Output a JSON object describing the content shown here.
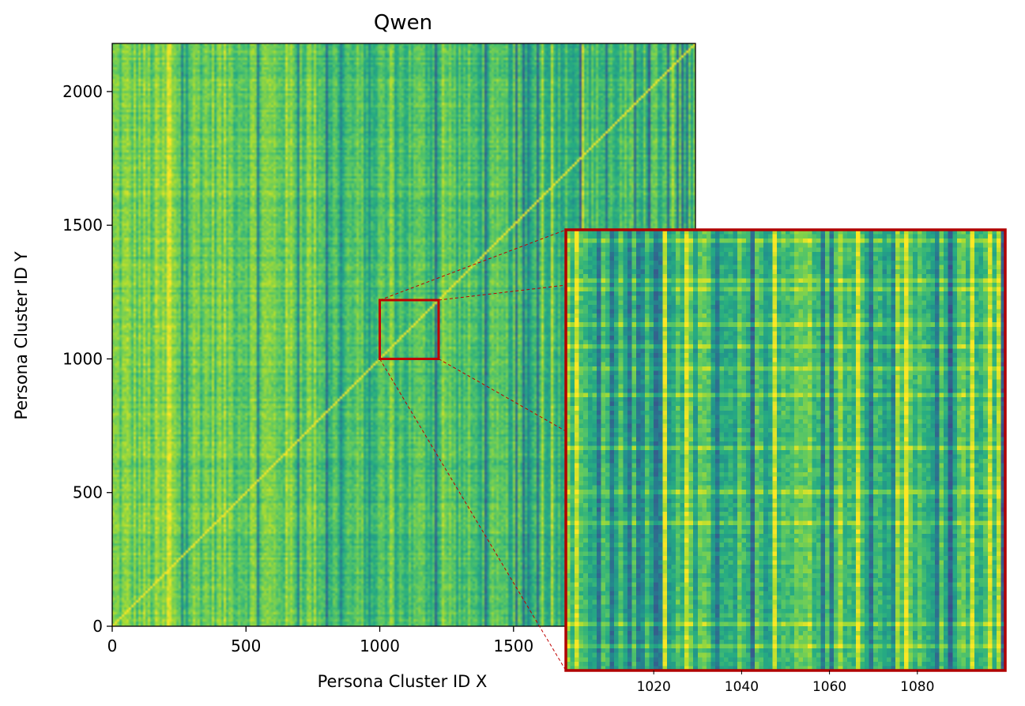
{
  "chart_data": {
    "type": "heatmap",
    "title": "Qwen",
    "xlabel": "Persona Cluster ID X",
    "ylabel": "Persona Cluster ID Y",
    "xlim": [
      0,
      2180
    ],
    "ylim": [
      0,
      2180
    ],
    "x_ticks": [
      0,
      500,
      1000,
      1500,
      2000
    ],
    "x_tick_labels": [
      "0",
      "500",
      "1000",
      "1500",
      ""
    ],
    "y_ticks": [
      0,
      500,
      1000,
      1500,
      2000
    ],
    "y_tick_labels": [
      "0",
      "500",
      "1000",
      "1500",
      "2000"
    ],
    "colormap": "viridis",
    "value_range": [
      0.3,
      1.0
    ],
    "grid": false,
    "zoom_region": {
      "x": [
        1000,
        1220
      ],
      "y": [
        1000,
        1220
      ],
      "highlight_color": "#c00000"
    },
    "inset": {
      "xlim": [
        1000,
        1100
      ],
      "ylim": [
        1000,
        1100
      ],
      "x_ticks": [
        1020,
        1040,
        1060,
        1080
      ],
      "x_tick_labels": [
        "1020",
        "1040",
        "1060",
        "1080"
      ],
      "border_color": "#b00000",
      "pattern": "column-dominated similarity stripes with faint horizontal bands"
    }
  }
}
